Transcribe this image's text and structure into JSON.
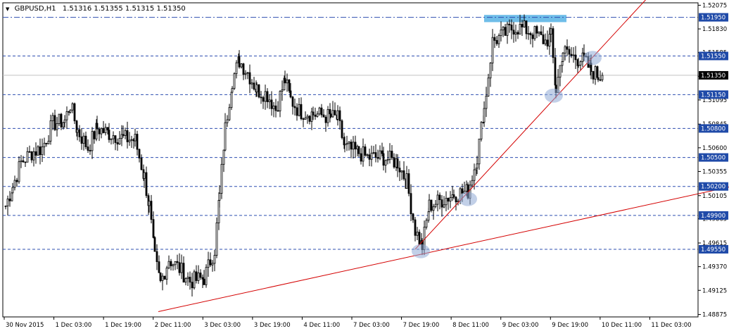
{
  "header": {
    "symbol": "GBPUSD,H1",
    "ohlc": "1.51316 1.51355 1.51315 1.51350"
  },
  "colors": {
    "background": "#ffffff",
    "candle": "#000000",
    "level_line": "#2f4fb0",
    "trend_line": "#d40000",
    "label_bg": "#1f4aa8",
    "label_text": "#ffffff",
    "bid_line": "#c0c0c0",
    "highlight_zone": "#5fb6e6",
    "ellipse": "#8faad6"
  },
  "chart_data": {
    "type": "candlestick",
    "timeframe": "H1",
    "symbol": "GBPUSD",
    "ylim": [
      1.4885,
      1.521
    ],
    "price_ticks": [
      1.52075,
      1.5183,
      1.51585,
      1.5134,
      1.51095,
      1.50845,
      1.506,
      1.50355,
      1.50105,
      1.49865,
      1.49615,
      1.4937,
      1.49125,
      1.48875
    ],
    "time_ticks": [
      "30 Nov 2015",
      "1 Dec 03:00",
      "1 Dec 19:00",
      "2 Dec 11:00",
      "3 Dec 03:00",
      "3 Dec 19:00",
      "4 Dec 11:00",
      "7 Dec 03:00",
      "7 Dec 19:00",
      "8 Dec 11:00",
      "9 Dec 03:00",
      "9 Dec 19:00",
      "10 Dec 11:00",
      "11 Dec 03:00"
    ],
    "horizontal_levels": [
      {
        "price": 1.5195,
        "style": "dash-dot"
      },
      {
        "price": 1.5155,
        "style": "dashed"
      },
      {
        "price": 1.5115,
        "style": "dashed"
      },
      {
        "price": 1.508,
        "style": "dashed"
      },
      {
        "price": 1.505,
        "style": "dashed"
      },
      {
        "price": 1.502,
        "style": "dashed"
      },
      {
        "price": 1.499,
        "style": "dashed"
      },
      {
        "price": 1.4955,
        "style": "dashed"
      }
    ],
    "level_labels": [
      "1.51950",
      "1.51550",
      "1.51150",
      "1.50800",
      "1.50500",
      "1.50200",
      "1.49900",
      "1.49550"
    ],
    "bid_price": 1.5135,
    "bid_label": "1.51350",
    "trendlines": [
      {
        "from": {
          "bar": 225,
          "price": 1.48905
        },
        "to": {
          "bar": 1040,
          "price": 1.502
        }
      },
      {
        "from": {
          "bar": 590,
          "price": 1.4955
        },
        "to": {
          "bar": 920,
          "price": 1.5215
        }
      }
    ],
    "highlight_zone": {
      "bar_from": 688,
      "bar_to": 805,
      "price_from": 1.519,
      "price_to": 1.51975
    },
    "ellipses": [
      {
        "bar": 598,
        "price": 1.4953
      },
      {
        "bar": 665,
        "price": 1.5007
      },
      {
        "bar": 787,
        "price": 1.5114
      },
      {
        "bar": 842,
        "price": 1.5153
      }
    ],
    "anchors": [
      [
        8,
        1.5
      ],
      [
        18,
        1.502
      ],
      [
        30,
        1.5045
      ],
      [
        45,
        1.5055
      ],
      [
        60,
        1.506
      ],
      [
        75,
        1.5085
      ],
      [
        92,
        1.5088
      ],
      [
        100,
        1.5105
      ],
      [
        110,
        1.5078
      ],
      [
        125,
        1.506
      ],
      [
        138,
        1.508
      ],
      [
        155,
        1.5075
      ],
      [
        175,
        1.507
      ],
      [
        192,
        1.5068
      ],
      [
        205,
        1.503
      ],
      [
        212,
        1.5
      ],
      [
        220,
        1.4945
      ],
      [
        228,
        1.492
      ],
      [
        240,
        1.4945
      ],
      [
        255,
        1.4935
      ],
      [
        270,
        1.4922
      ],
      [
        290,
        1.4925
      ],
      [
        305,
        1.4955
      ],
      [
        312,
        1.501
      ],
      [
        320,
        1.508
      ],
      [
        330,
        1.513
      ],
      [
        340,
        1.515
      ],
      [
        352,
        1.5138
      ],
      [
        365,
        1.512
      ],
      [
        380,
        1.5115
      ],
      [
        392,
        1.51
      ],
      [
        405,
        1.513
      ],
      [
        413,
        1.511
      ],
      [
        425,
        1.5098
      ],
      [
        445,
        1.5095
      ],
      [
        470,
        1.5092
      ],
      [
        480,
        1.509
      ],
      [
        490,
        1.506
      ],
      [
        510,
        1.5055
      ],
      [
        522,
        1.505
      ],
      [
        545,
        1.505
      ],
      [
        565,
        1.5045
      ],
      [
        578,
        1.5025
      ],
      [
        590,
        1.4975
      ],
      [
        600,
        1.4958
      ],
      [
        610,
        1.5
      ],
      [
        625,
        1.5005
      ],
      [
        645,
        1.5012
      ],
      [
        665,
        1.5015
      ],
      [
        678,
        1.505
      ],
      [
        688,
        1.51
      ],
      [
        700,
        1.517
      ],
      [
        712,
        1.5175
      ],
      [
        730,
        1.5185
      ],
      [
        745,
        1.5183
      ],
      [
        760,
        1.5178
      ],
      [
        775,
        1.517
      ],
      [
        783,
        1.5175
      ],
      [
        790,
        1.512
      ],
      [
        800,
        1.516
      ],
      [
        812,
        1.5155
      ],
      [
        822,
        1.5152
      ],
      [
        830,
        1.515
      ],
      [
        840,
        1.514
      ],
      [
        850,
        1.5135
      ],
      [
        856,
        1.5135
      ]
    ]
  }
}
